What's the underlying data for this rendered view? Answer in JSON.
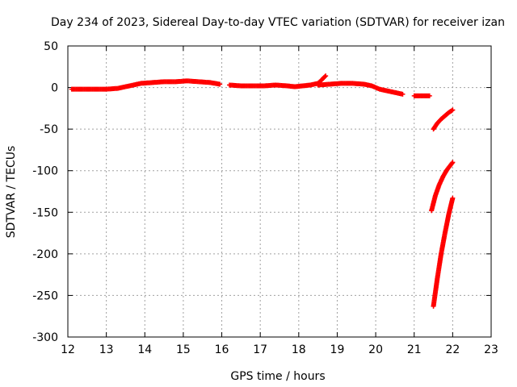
{
  "chart_data": {
    "type": "scatter",
    "title": "Day 234 of 2023, Sidereal Day-to-day VTEC variation (SDTVAR) for receiver izan",
    "xlabel": "GPS time / hours",
    "ylabel": "SDTVAR / TECUs",
    "xlim": [
      12,
      23
    ],
    "ylim": [
      -300,
      50
    ],
    "xticks": [
      12,
      13,
      14,
      15,
      16,
      17,
      18,
      19,
      20,
      21,
      22,
      23
    ],
    "yticks": [
      50,
      0,
      -50,
      -100,
      -150,
      -200,
      -250,
      -300
    ],
    "grid": true,
    "marker": "+",
    "series": [
      {
        "name": "segment-1",
        "color": "#ff0000",
        "x": [
          12.1,
          12.4,
          12.7,
          13.0,
          13.3,
          13.6,
          13.9,
          14.2,
          14.5,
          14.8,
          15.1,
          15.4,
          15.7,
          15.95
        ],
        "y": [
          -2,
          -2,
          -2,
          -2,
          -1,
          2,
          5,
          6,
          7,
          7,
          8,
          7,
          6,
          4
        ]
      },
      {
        "name": "segment-2",
        "color": "#ff0000",
        "x": [
          16.2,
          16.5,
          16.8,
          17.1,
          17.4,
          17.7,
          17.9,
          18.1,
          18.3,
          18.5,
          18.7
        ],
        "y": [
          3,
          2,
          2,
          2,
          3,
          2,
          1,
          2,
          3,
          5,
          14
        ]
      },
      {
        "name": "segment-3",
        "color": "#ff0000",
        "x": [
          18.5,
          18.8,
          19.1,
          19.4,
          19.7,
          19.9,
          20.1,
          20.3,
          20.5,
          20.7
        ],
        "y": [
          3,
          4,
          5,
          5,
          4,
          2,
          -2,
          -4,
          -6,
          -8
        ]
      },
      {
        "name": "segment-4",
        "color": "#ff0000",
        "x": [
          21.0,
          21.2,
          21.4
        ],
        "y": [
          -10,
          -10,
          -10
        ]
      },
      {
        "name": "segment-5",
        "color": "#ff0000",
        "x": [
          21.5,
          21.6,
          21.7,
          21.8,
          21.9,
          22.0
        ],
        "y": [
          -50,
          -43,
          -38,
          -34,
          -30,
          -27
        ]
      },
      {
        "name": "segment-6",
        "color": "#ff0000",
        "x": [
          21.45,
          21.55,
          21.65,
          21.75,
          21.85,
          21.95,
          22.0
        ],
        "y": [
          -148,
          -130,
          -117,
          -107,
          -99,
          -93,
          -90
        ]
      },
      {
        "name": "segment-7",
        "color": "#ff0000",
        "x": [
          21.5,
          21.6,
          21.7,
          21.8,
          21.9,
          22.0
        ],
        "y": [
          -263,
          -230,
          -200,
          -175,
          -152,
          -133
        ]
      }
    ]
  }
}
